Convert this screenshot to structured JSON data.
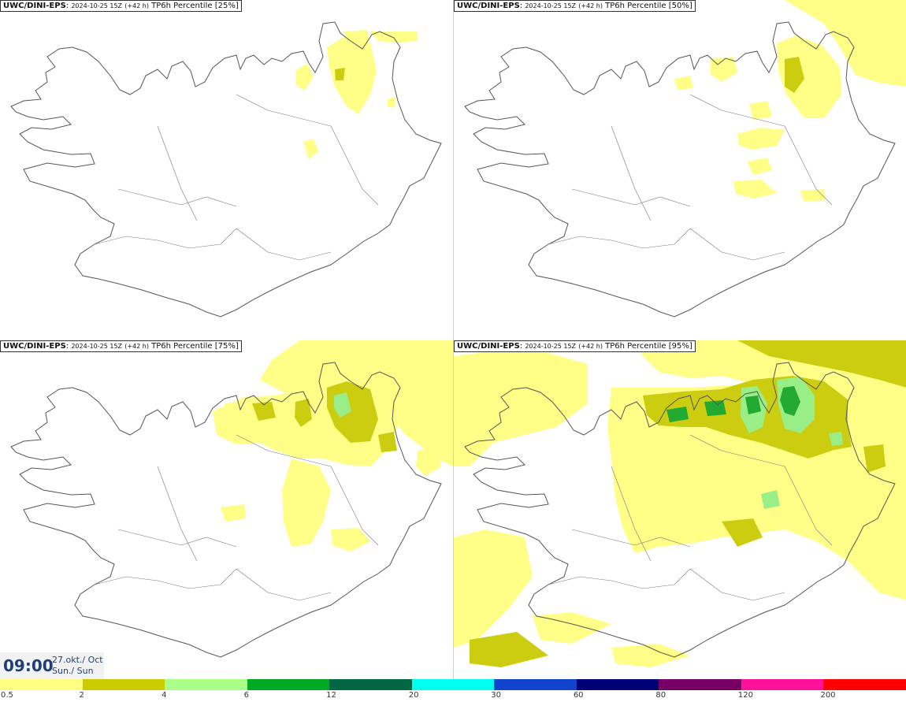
{
  "panels": [
    {
      "model": "UWC/DINI-EPS",
      "run": "2024-10-25 15Z",
      "lead": "(+42 h)",
      "field": "TP6h Percentile [25%]",
      "level": 0
    },
    {
      "model": "UWC/DINI-EPS",
      "run": "2024-10-25 15Z",
      "lead": "(+42 h)",
      "field": "TP6h Percentile [50%]",
      "level": 1
    },
    {
      "model": "UWC/DINI-EPS",
      "run": "2024-10-25 15Z",
      "lead": "(+42 h)",
      "field": "TP6h Percentile [75%]",
      "level": 2
    },
    {
      "model": "UWC/DINI-EPS",
      "run": "2024-10-25 15Z",
      "lead": "(+42 h)",
      "field": "TP6h Percentile [95%]",
      "level": 3
    }
  ],
  "valid_time": {
    "time": "09:00",
    "date_line1": "27.okt./ Oct",
    "date_line2": "Sun./ Sun"
  },
  "legend": {
    "labels": [
      "0.5",
      "2",
      "4",
      "6",
      "12",
      "20",
      "30",
      "60",
      "80",
      "120",
      "200"
    ],
    "colors": [
      "#ffff80",
      "#cccc00",
      "#aaff88",
      "#00aa22",
      "#006644",
      "#00ffee",
      "#1144cc",
      "#000077",
      "#770066",
      "#ff1199",
      "#ff0000"
    ]
  },
  "palette": {
    "light_yellow": "#ffff88",
    "olive": "#cccc11",
    "light_green": "#99ee88",
    "green": "#22aa33",
    "coast": "#555555"
  }
}
